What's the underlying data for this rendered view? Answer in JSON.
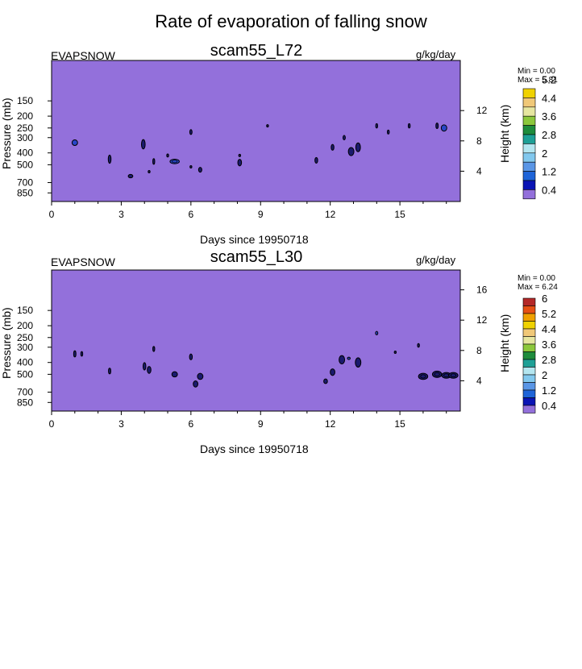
{
  "title": "Rate of evaporation of falling snow",
  "colors": {
    "background_fill": "#9370db",
    "contour_line": "#000000",
    "colorbar_palette": [
      "#9370db",
      "#0a14b4",
      "#1e64d8",
      "#5a96e6",
      "#82c8ee",
      "#b4e6f0",
      "#1ea096",
      "#1e8c3c",
      "#8cc83c",
      "#e6e6a0",
      "#f0c878",
      "#f0d200",
      "#f0a000",
      "#e65014",
      "#b42828",
      "#f0b4b4",
      "#f01e96"
    ]
  },
  "chart_data": [
    {
      "type": "heatmap",
      "variable": "EVAPSNOW",
      "case": "scam55_L72",
      "units": "g/kg/day",
      "stats": {
        "min_label": "Min = ",
        "min": "0.00",
        "max_label": "Max = ",
        "max": "5.81"
      },
      "xlabel": "Days since 19950718",
      "ylabel": "Pressure (mb)",
      "y2label": "Height (km)",
      "x_ticks": [
        "0",
        "3",
        "6",
        "9",
        "12",
        "15"
      ],
      "x_tick_values": [
        0,
        3,
        6,
        9,
        12,
        15
      ],
      "xlim": [
        0,
        17.6
      ],
      "y_log_scale": true,
      "ylim_pressure": [
        1000,
        70
      ],
      "y_ticks": [
        "150",
        "200",
        "250",
        "300",
        "400",
        "500",
        "700",
        "850"
      ],
      "y_tick_values": [
        150,
        200,
        250,
        300,
        400,
        500,
        700,
        850
      ],
      "y2_ticks": [
        "12",
        "8",
        "4"
      ],
      "y2_tick_values": [
        12,
        8,
        4
      ],
      "colorbar_labels": [
        "5.2",
        "4.4",
        "3.6",
        "2.8",
        "2",
        "1.2",
        "0.4"
      ],
      "colorbar_boxes": 12,
      "features": [
        {
          "day": 1.0,
          "p": 330,
          "dday": 0.12,
          "dp": 35,
          "fill": "#2846c8"
        },
        {
          "day": 2.5,
          "p": 450,
          "dday": 0.06,
          "dp": 70
        },
        {
          "day": 3.4,
          "p": 620,
          "dday": 0.1,
          "dp": 40
        },
        {
          "day": 3.95,
          "p": 340,
          "dday": 0.08,
          "dp": 60
        },
        {
          "day": 4.2,
          "p": 570,
          "dday": 0.04,
          "dp": 20
        },
        {
          "day": 4.4,
          "p": 470,
          "dday": 0.04,
          "dp": 50
        },
        {
          "day": 5.3,
          "p": 470,
          "dday": 0.2,
          "dp": 40,
          "fill": "#2846c8"
        },
        {
          "day": 5.0,
          "p": 420,
          "dday": 0.04,
          "dp": 25
        },
        {
          "day": 6.0,
          "p": 270,
          "dday": 0.05,
          "dp": 25
        },
        {
          "day": 6.0,
          "p": 520,
          "dday": 0.04,
          "dp": 20
        },
        {
          "day": 6.4,
          "p": 550,
          "dday": 0.07,
          "dp": 50
        },
        {
          "day": 8.1,
          "p": 480,
          "dday": 0.08,
          "dp": 60
        },
        {
          "day": 8.1,
          "p": 420,
          "dday": 0.03,
          "dp": 15
        },
        {
          "day": 9.3,
          "p": 240,
          "dday": 0.03,
          "dp": 8
        },
        {
          "day": 11.4,
          "p": 460,
          "dday": 0.06,
          "dp": 50
        },
        {
          "day": 12.1,
          "p": 360,
          "dday": 0.06,
          "dp": 40
        },
        {
          "day": 12.6,
          "p": 300,
          "dday": 0.05,
          "dp": 25
        },
        {
          "day": 12.9,
          "p": 390,
          "dday": 0.12,
          "dp": 60
        },
        {
          "day": 13.2,
          "p": 360,
          "dday": 0.1,
          "dp": 60
        },
        {
          "day": 14.0,
          "p": 240,
          "dday": 0.04,
          "dp": 20
        },
        {
          "day": 14.5,
          "p": 270,
          "dday": 0.03,
          "dp": 20
        },
        {
          "day": 15.4,
          "p": 240,
          "dday": 0.03,
          "dp": 20
        },
        {
          "day": 16.6,
          "p": 240,
          "dday": 0.05,
          "dp": 25
        },
        {
          "day": 16.9,
          "p": 250,
          "dday": 0.12,
          "dp": 30,
          "fill": "#2846c8"
        }
      ]
    },
    {
      "type": "heatmap",
      "variable": "EVAPSNOW",
      "case": "scam55_L30",
      "units": "g/kg/day",
      "stats": {
        "min_label": "Min = ",
        "min": "0.00",
        "max_label": "Max = ",
        "max": "6.24"
      },
      "xlabel": "Days since 19950718",
      "ylabel": "Pressure (mb)",
      "y2label": "Height (km)",
      "x_ticks": [
        "0",
        "3",
        "6",
        "9",
        "12",
        "15"
      ],
      "x_tick_values": [
        0,
        3,
        6,
        9,
        12,
        15
      ],
      "xlim": [
        0,
        17.6
      ],
      "y_log_scale": true,
      "ylim_pressure": [
        1000,
        70
      ],
      "y_ticks": [
        "150",
        "200",
        "250",
        "300",
        "400",
        "500",
        "700",
        "850"
      ],
      "y_tick_values": [
        150,
        200,
        250,
        300,
        400,
        500,
        700,
        850
      ],
      "y2_ticks": [
        "16",
        "12",
        "8",
        "4"
      ],
      "y2_tick_values": [
        16,
        12,
        8,
        4
      ],
      "colorbar_labels": [
        "6",
        "5.2",
        "4.4",
        "3.6",
        "2.8",
        "2",
        "1.2",
        "0.4"
      ],
      "colorbar_boxes": 15,
      "features": [
        {
          "day": 1.0,
          "p": 340,
          "dday": 0.05,
          "dp": 40
        },
        {
          "day": 1.3,
          "p": 340,
          "dday": 0.03,
          "dp": 30
        },
        {
          "day": 2.5,
          "p": 470,
          "dday": 0.05,
          "dp": 50
        },
        {
          "day": 4.0,
          "p": 430,
          "dday": 0.06,
          "dp": 60
        },
        {
          "day": 4.2,
          "p": 460,
          "dday": 0.08,
          "dp": 60
        },
        {
          "day": 4.4,
          "p": 310,
          "dday": 0.03,
          "dp": 30
        },
        {
          "day": 5.3,
          "p": 500,
          "dday": 0.12,
          "dp": 50
        },
        {
          "day": 6.0,
          "p": 360,
          "dday": 0.06,
          "dp": 40
        },
        {
          "day": 6.2,
          "p": 600,
          "dday": 0.1,
          "dp": 70
        },
        {
          "day": 6.4,
          "p": 520,
          "dday": 0.12,
          "dp": 60
        },
        {
          "day": 11.8,
          "p": 570,
          "dday": 0.08,
          "dp": 50
        },
        {
          "day": 12.1,
          "p": 480,
          "dday": 0.1,
          "dp": 60
        },
        {
          "day": 12.5,
          "p": 380,
          "dday": 0.12,
          "dp": 60
        },
        {
          "day": 12.8,
          "p": 370,
          "dday": 0.06,
          "dp": 15,
          "fill": "#2846c8"
        },
        {
          "day": 13.2,
          "p": 400,
          "dday": 0.12,
          "dp": 70
        },
        {
          "day": 14.0,
          "p": 230,
          "dday": 0.05,
          "dp": 15,
          "fill": "#2846c8"
        },
        {
          "day": 15.8,
          "p": 290,
          "dday": 0.04,
          "dp": 20
        },
        {
          "day": 16.0,
          "p": 520,
          "dday": 0.2,
          "dp": 60
        },
        {
          "day": 16.6,
          "p": 500,
          "dday": 0.2,
          "dp": 60
        },
        {
          "day": 17.0,
          "p": 510,
          "dday": 0.2,
          "dp": 55
        },
        {
          "day": 17.3,
          "p": 510,
          "dday": 0.2,
          "dp": 55
        },
        {
          "day": 14.8,
          "p": 330,
          "dday": 0.02,
          "dp": 8
        }
      ]
    }
  ]
}
